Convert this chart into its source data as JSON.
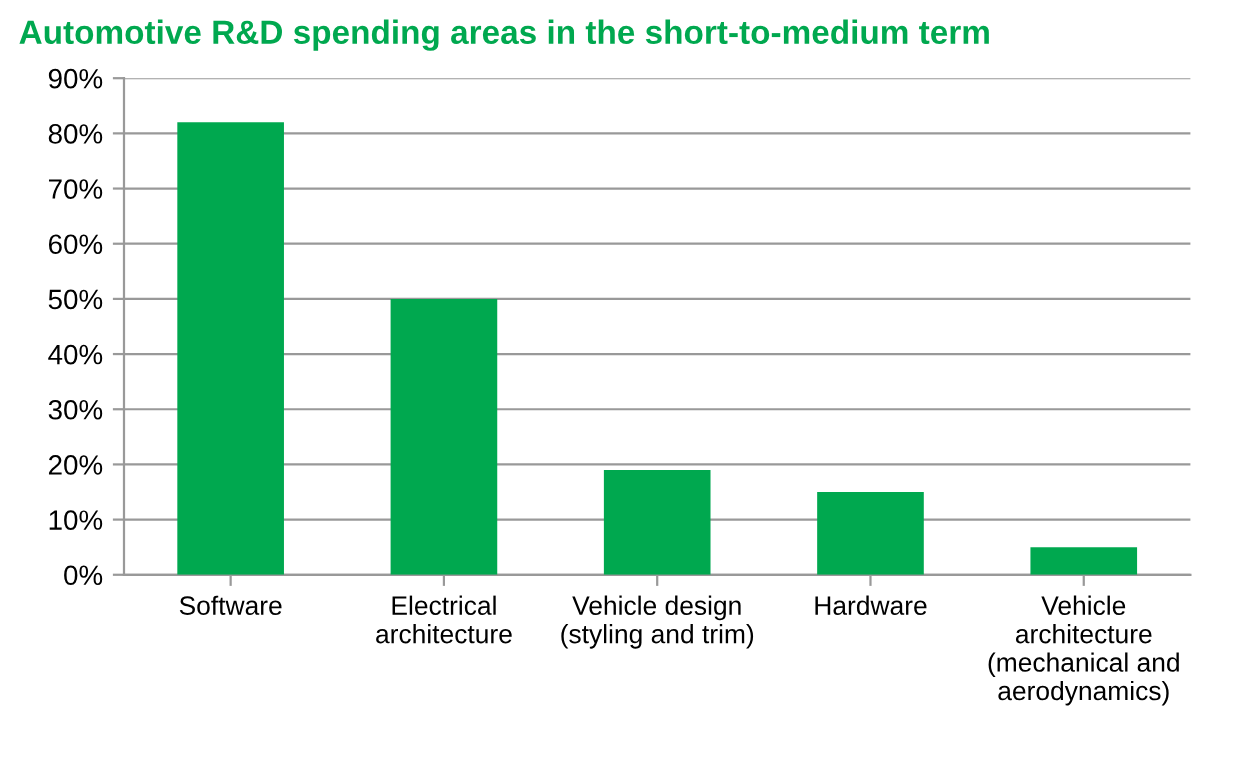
{
  "chart_data": {
    "type": "bar",
    "title": "Automotive R&D spending areas in the short-to-medium term",
    "categories": [
      "Software",
      "Electrical\narchitecture",
      "Vehicle design\n(styling and trim)",
      "Hardware",
      "Vehicle\narchitecture\n(mechanical and\naerodynamics)"
    ],
    "values": [
      82,
      50,
      19,
      15,
      5
    ],
    "color": "#00a84f",
    "ylim": [
      0,
      90
    ],
    "yticks": [
      {
        "value": 0,
        "label": "0%"
      },
      {
        "value": 10,
        "label": "10%"
      },
      {
        "value": 20,
        "label": "20%"
      },
      {
        "value": 30,
        "label": "30%"
      },
      {
        "value": 40,
        "label": "40%"
      },
      {
        "value": 50,
        "label": "50%"
      },
      {
        "value": 60,
        "label": "60%"
      },
      {
        "value": 70,
        "label": "70%"
      },
      {
        "value": 80,
        "label": "80%"
      },
      {
        "value": 90,
        "label": "90%"
      }
    ],
    "grid": "y"
  }
}
